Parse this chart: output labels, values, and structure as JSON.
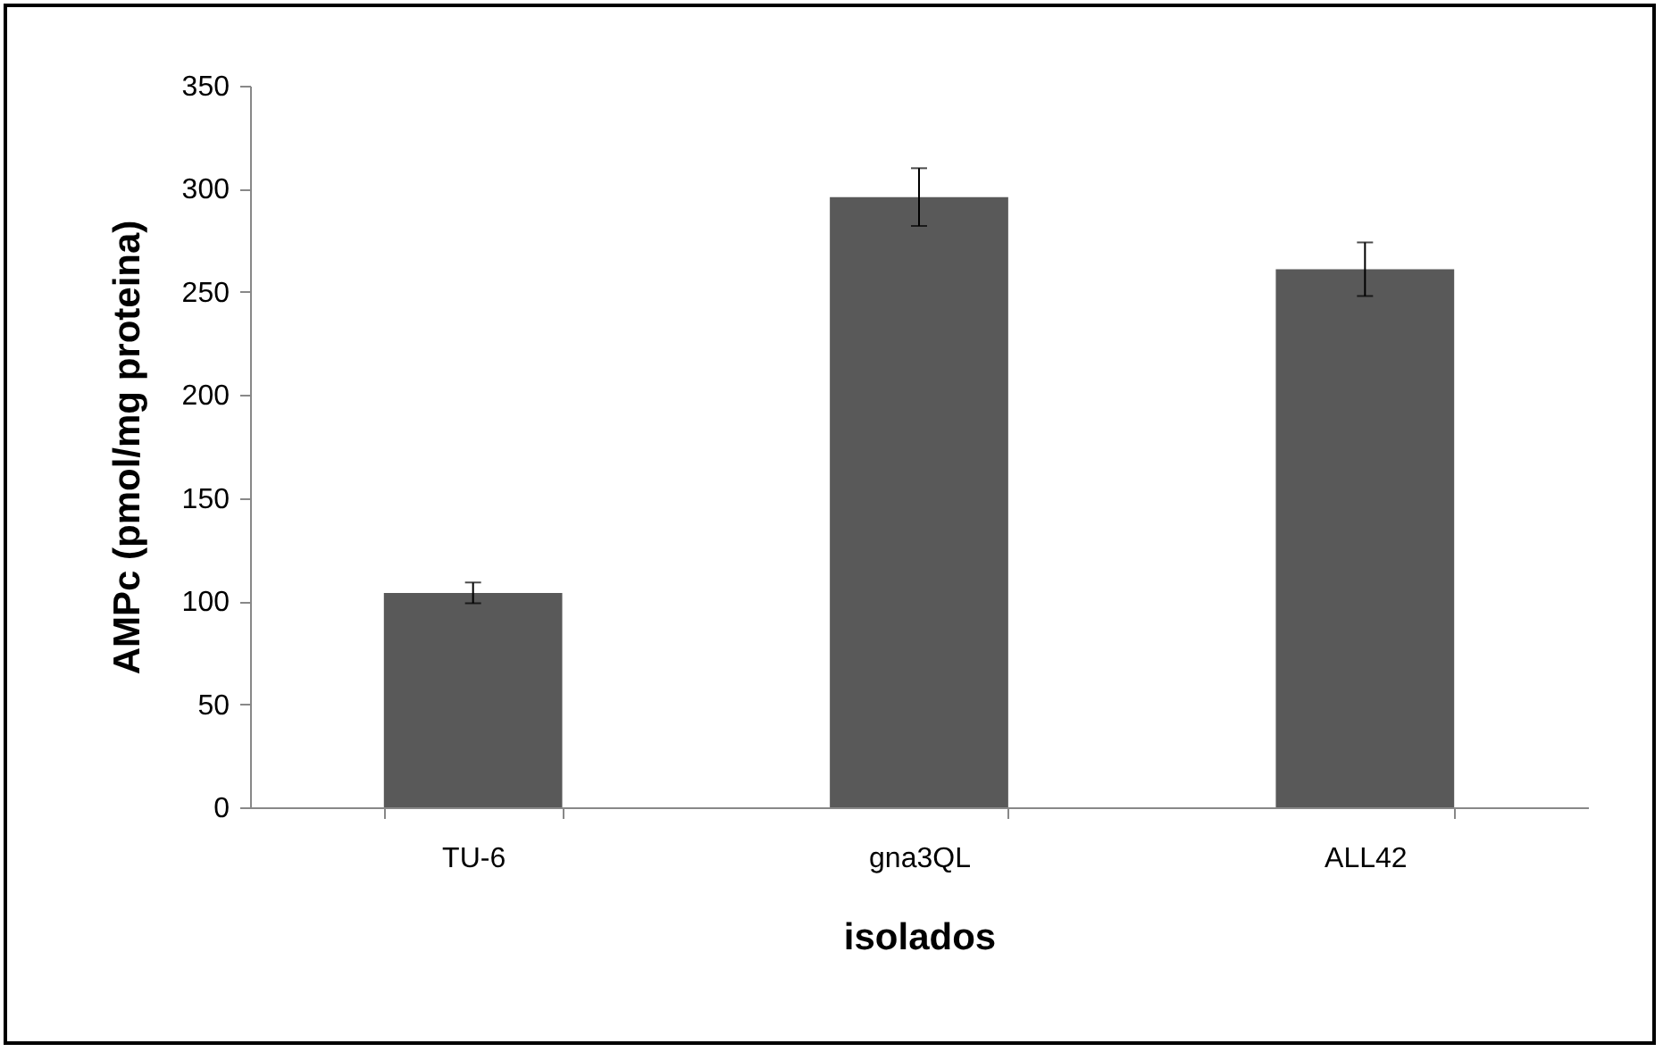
{
  "chart_data": {
    "type": "bar",
    "xlabel": "isolados",
    "ylabel": "AMPc  (pmol/mg proteina)",
    "categories": [
      "TU-6",
      "gna3QL",
      "ALL42"
    ],
    "values": [
      104,
      296,
      261
    ],
    "errors": [
      5,
      14,
      13
    ],
    "color": "#595959",
    "ylim": [
      0,
      350
    ],
    "yticks": [
      0,
      50,
      100,
      150,
      200,
      250,
      300,
      350
    ],
    "grid": false
  }
}
